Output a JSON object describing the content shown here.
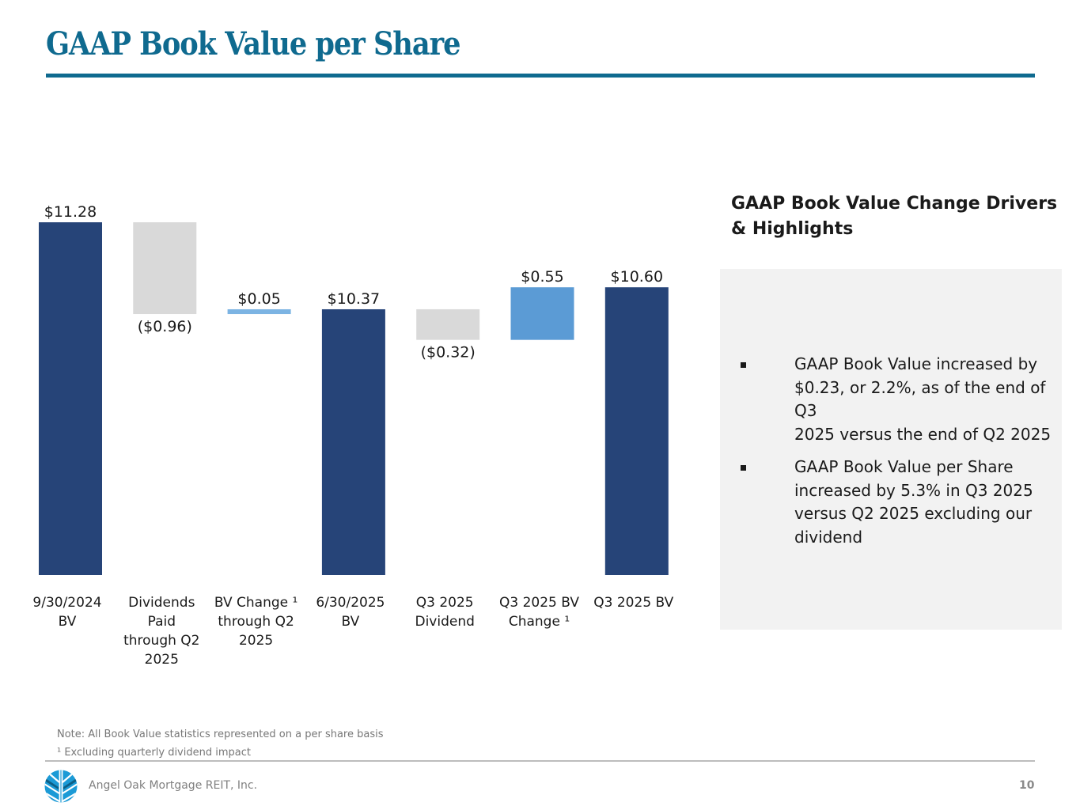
{
  "page": {
    "title": "GAAP Book Value per Share",
    "page_number": "10",
    "company": "Angel Oak Mortgage REIT, Inc.",
    "logo_icon": "tree-logo-icon",
    "notes": [
      "Note: All Book Value statistics represented on a per share basis",
      "¹ Excluding quarterly dividend impact"
    ]
  },
  "panel": {
    "title_lines": [
      "GAAP Book Value Change Drivers",
      "& Highlights"
    ],
    "bullets": [
      {
        "lines": [
          "GAAP Book Value increased by",
          "$0.23, or 2.2%, as of the end of Q3",
          "2025 versus the end of Q2 2025"
        ]
      },
      {
        "lines": [
          "GAAP Book Value per Share",
          "increased by 5.3% in Q3 2025",
          "versus Q2 2025 excluding our",
          "dividend"
        ]
      }
    ]
  },
  "colors": {
    "title": "#0f6a8f",
    "total_bar": "#264478",
    "decrease_bar": "#d9d9d9",
    "increase_bar": "#5b9bd5",
    "increase_bar_light": "#7cb4e3",
    "panel_bg": "#f2f2f2"
  },
  "chart_data": {
    "type": "bar",
    "subtype": "waterfall",
    "title": "",
    "xlabel": "",
    "ylabel": "",
    "ylim": [
      7.59,
      11.28
    ],
    "grid": false,
    "legend": "none",
    "categories": [
      [
        "9/30/2024",
        "BV"
      ],
      [
        "Dividends",
        "Paid",
        "through Q2",
        "2025"
      ],
      [
        "BV Change ¹",
        "through Q2",
        "2025"
      ],
      [
        "6/30/2025",
        "BV"
      ],
      [
        "Q3 2025",
        "Dividend"
      ],
      [
        "Q3 2025 BV",
        "Change ¹"
      ],
      [
        "Q3 2025 BV"
      ]
    ],
    "bars": [
      {
        "kind": "total",
        "start": 0,
        "end": 11.28,
        "value": 11.28,
        "label": "$11.28",
        "label_pos": "above",
        "color": "#264478"
      },
      {
        "kind": "decrease",
        "start": 11.28,
        "end": 10.32,
        "value": -0.96,
        "label": "($0.96)",
        "label_pos": "below",
        "color": "#d9d9d9"
      },
      {
        "kind": "increase",
        "start": 10.32,
        "end": 10.37,
        "value": 0.05,
        "label": "$0.05",
        "label_pos": "above",
        "color": "#7cb4e3"
      },
      {
        "kind": "total",
        "start": 0,
        "end": 10.37,
        "value": 10.37,
        "label": "$10.37",
        "label_pos": "above",
        "color": "#264478"
      },
      {
        "kind": "decrease",
        "start": 10.37,
        "end": 10.05,
        "value": -0.32,
        "label": "($0.32)",
        "label_pos": "below",
        "color": "#d9d9d9"
      },
      {
        "kind": "increase",
        "start": 10.05,
        "end": 10.6,
        "value": 0.55,
        "label": "$0.55",
        "label_pos": "above",
        "color": "#5b9bd5"
      },
      {
        "kind": "total",
        "start": 0,
        "end": 10.6,
        "value": 10.6,
        "label": "$10.60",
        "label_pos": "above",
        "color": "#264478"
      }
    ]
  }
}
